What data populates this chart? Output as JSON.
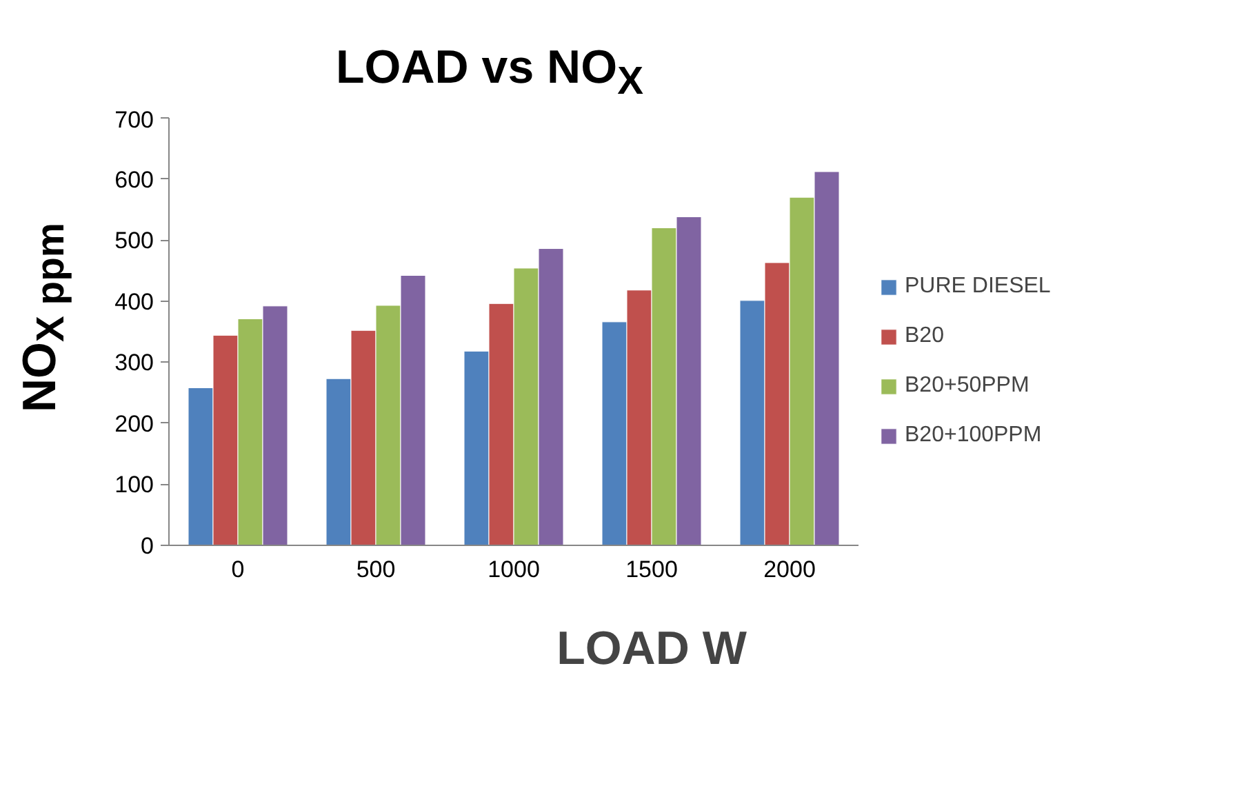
{
  "chart_data": {
    "type": "bar",
    "title": "LOAD vs NO$_{X}$",
    "xlabel": "LOAD W",
    "ylabel": "NO$_{X ppm}$",
    "categories": [
      "0",
      "500",
      "1000",
      "1500",
      "2000"
    ],
    "series": [
      {
        "name": "PURE DIESEL",
        "color": "#4f81bd",
        "values": [
          258,
          273,
          318,
          366,
          401
        ]
      },
      {
        "name": "B20",
        "color": "#c0504d",
        "values": [
          344,
          352,
          396,
          418,
          463
        ]
      },
      {
        "name": "B20+50PPM",
        "color": "#9bbb59",
        "values": [
          371,
          393,
          454,
          520,
          570
        ]
      },
      {
        "name": "B20+100PPM",
        "color": "#8064a2",
        "values": [
          392,
          442,
          486,
          538,
          612
        ]
      }
    ],
    "ylim": [
      0,
      700
    ],
    "yticks": [
      0,
      100,
      200,
      300,
      400,
      500,
      600,
      700
    ],
    "grid": false,
    "legend": "right"
  }
}
